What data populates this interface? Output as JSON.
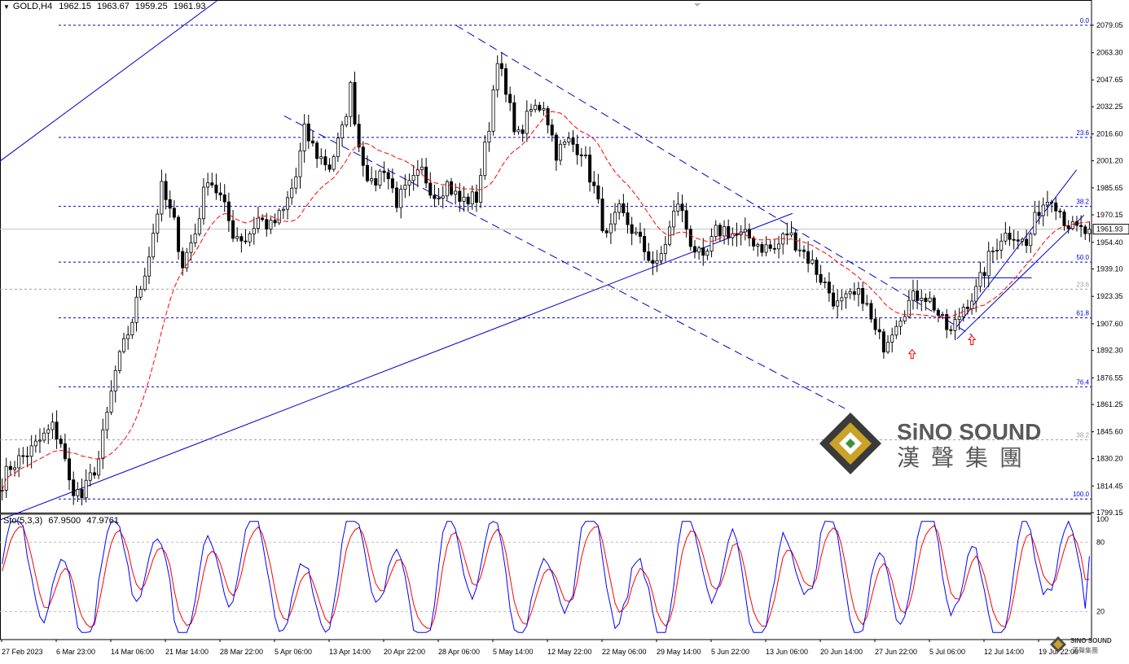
{
  "header": {
    "symbol": "GOLD,H4",
    "open": "1962.15",
    "high": "1963.67",
    "low": "1959.25",
    "close": "1961.93",
    "collapse_icon": "triangle-down-icon"
  },
  "stoch_header": {
    "label": "Sto(5,3,3)",
    "main": "67.9500",
    "signal": "47.9761"
  },
  "logo": {
    "name": "SiNO SOUND",
    "chinese": "漢聲集團",
    "colors": {
      "gold": "#c9a227",
      "dark": "#3a3a3a",
      "text": "#5a5a5a"
    }
  },
  "watermark": {
    "name": "SINO SOUND",
    "chinese": "漢聲集團"
  },
  "chart_data": {
    "type": "candlestick",
    "symbol": "GOLD",
    "timeframe": "H4",
    "ylim": [
      1799.15,
      2087.0
    ],
    "price_ticks": [
      "2079.05",
      "2063.30",
      "2047.65",
      "2032.25",
      "2016.60",
      "2001.20",
      "1985.65",
      "1970.15",
      "1954.40",
      "1939.10",
      "1923.35",
      "1907.60",
      "1892.30",
      "1876.55",
      "1861.25",
      "1845.60",
      "1830.20",
      "1814.45",
      "1799.15"
    ],
    "current_price": "1961.93",
    "time_labels": [
      "27 Feb 2023",
      "6 Mar 23:00",
      "14 Mar 06:00",
      "21 Mar 14:00",
      "28 Mar 22:00",
      "5 Apr 06:00",
      "13 Apr 14:00",
      "20 Apr 22:00",
      "28 Apr 06:00",
      "5 May 14:00",
      "12 May 22:00",
      "22 May 06:00",
      "29 May 14:00",
      "5 Jun 22:00",
      "13 Jun 06:00",
      "20 Jun 14:00",
      "27 Jun 22:00",
      "5 Jul 06:00",
      "12 Jul 14:00",
      "19 Jul 22:00"
    ],
    "fib_main": [
      {
        "label": "0.0",
        "price": 2079.05
      },
      {
        "label": "23.6",
        "price": 2014.6
      },
      {
        "label": "38.2",
        "price": 1975.0
      },
      {
        "label": "50.0",
        "price": 1943.0
      },
      {
        "label": "61.8",
        "price": 1911.0
      },
      {
        "label": "76.4",
        "price": 1871.4
      },
      {
        "label": "100.0",
        "price": 1807.0
      }
    ],
    "fib_secondary": [
      {
        "label": "23.6",
        "price": 1927.5
      },
      {
        "label": "38.2",
        "price": 1841.0
      }
    ],
    "close_anchors": [
      [
        0,
        1817
      ],
      [
        2,
        1826
      ],
      [
        7,
        1835
      ],
      [
        10,
        1843
      ],
      [
        12,
        1848
      ],
      [
        14,
        1840
      ],
      [
        16,
        1816
      ],
      [
        19,
        1808
      ],
      [
        23,
        1830
      ],
      [
        27,
        1880
      ],
      [
        31,
        1910
      ],
      [
        35,
        1948
      ],
      [
        38,
        1985
      ],
      [
        41,
        1965
      ],
      [
        43,
        1942
      ],
      [
        46,
        1960
      ],
      [
        49,
        1993
      ],
      [
        52,
        1980
      ],
      [
        55,
        1960
      ],
      [
        58,
        1956
      ],
      [
        61,
        1968
      ],
      [
        64,
        1963
      ],
      [
        67,
        1972
      ],
      [
        70,
        1992
      ],
      [
        72,
        2018
      ],
      [
        75,
        2005
      ],
      [
        78,
        1998
      ],
      [
        81,
        2018
      ],
      [
        83,
        2043
      ],
      [
        85,
        2010
      ],
      [
        88,
        1986
      ],
      [
        91,
        1998
      ],
      [
        94,
        1978
      ],
      [
        97,
        1986
      ],
      [
        100,
        1995
      ],
      [
        103,
        1982
      ],
      [
        106,
        1988
      ],
      [
        109,
        1978
      ],
      [
        113,
        1980
      ],
      [
        116,
        2022
      ],
      [
        118,
        2062
      ],
      [
        120,
        2038
      ],
      [
        123,
        2015
      ],
      [
        126,
        2030
      ],
      [
        129,
        2034
      ],
      [
        132,
        2006
      ],
      [
        135,
        2012
      ],
      [
        138,
        2008
      ],
      [
        141,
        1985
      ],
      [
        144,
        1956
      ],
      [
        147,
        1972
      ],
      [
        150,
        1962
      ],
      [
        153,
        1950
      ],
      [
        156,
        1940
      ],
      [
        159,
        1962
      ],
      [
        161,
        1978
      ],
      [
        164,
        1955
      ],
      [
        167,
        1942
      ],
      [
        170,
        1960
      ],
      [
        172,
        1962
      ],
      [
        175,
        1958
      ],
      [
        178,
        1957
      ],
      [
        181,
        1952
      ],
      [
        184,
        1950
      ],
      [
        187,
        1960
      ],
      [
        190,
        1952
      ],
      [
        193,
        1942
      ],
      [
        196,
        1930
      ],
      [
        199,
        1918
      ],
      [
        202,
        1922
      ],
      [
        205,
        1924
      ],
      [
        208,
        1902
      ],
      [
        210,
        1896
      ],
      [
        213,
        1910
      ],
      [
        216,
        1920
      ],
      [
        219,
        1926
      ],
      [
        222,
        1918
      ],
      [
        224,
        1908
      ],
      [
        226,
        1902
      ],
      [
        229,
        1918
      ],
      [
        232,
        1926
      ],
      [
        235,
        1945
      ],
      [
        238,
        1958
      ],
      [
        241,
        1960
      ],
      [
        244,
        1952
      ],
      [
        247,
        1974
      ],
      [
        250,
        1982
      ],
      [
        253,
        1968
      ],
      [
        255,
        1962
      ],
      [
        258,
        1960
      ],
      [
        259,
        1961.93
      ]
    ],
    "ma_lag": 8,
    "trendlines": [
      {
        "style": "solid",
        "from": [
          "27 Feb 2023",
          2001
        ],
        "to": [
          "28 Mar 22:00",
          2093
        ]
      },
      {
        "style": "solid",
        "from": [
          "27 Feb 2023",
          1795
        ],
        "to": [
          "13 Jun 06:00",
          1971
        ]
      },
      {
        "style": "dashed",
        "from": [
          "6 Apr",
          2027
        ],
        "to": [
          "20 Jun",
          1859
        ]
      },
      {
        "style": "dashed",
        "from": [
          "29 Apr",
          2079
        ],
        "to": [
          "7 Jul",
          1901
        ]
      },
      {
        "style": "solid",
        "from": [
          "26 Jun",
          1934
        ],
        "to": [
          "15 Jul",
          1934
        ]
      },
      {
        "style": "solid",
        "from": [
          "5 Jul",
          1906
        ],
        "to": [
          "21 Jul",
          1996
        ]
      },
      {
        "style": "solid",
        "from": [
          "5 Jul",
          1899
        ],
        "to": [
          "22 Jul",
          1970
        ]
      }
    ],
    "arrows": [
      {
        "time": "29 Jun",
        "price": 1890,
        "icon": "up-arrow-icon",
        "color": "#ff0000"
      },
      {
        "time": "7 Jul",
        "price": 1898,
        "icon": "up-arrow-icon",
        "color": "#ff0000"
      }
    ],
    "stochastic": {
      "params": "5,3,3",
      "main": 67.95,
      "signal": 47.9761,
      "levels": [
        20,
        80
      ],
      "ticks": [
        "100",
        "80",
        "20"
      ],
      "colors": {
        "main": "#0000ff",
        "signal": "#ff0000"
      }
    },
    "colors": {
      "candle": "#000000",
      "moving_average": "#ff0000",
      "fib": "#0000cc",
      "trendline": "#0000cc",
      "grid_current": "#c0c0c0"
    },
    "grid": false
  }
}
